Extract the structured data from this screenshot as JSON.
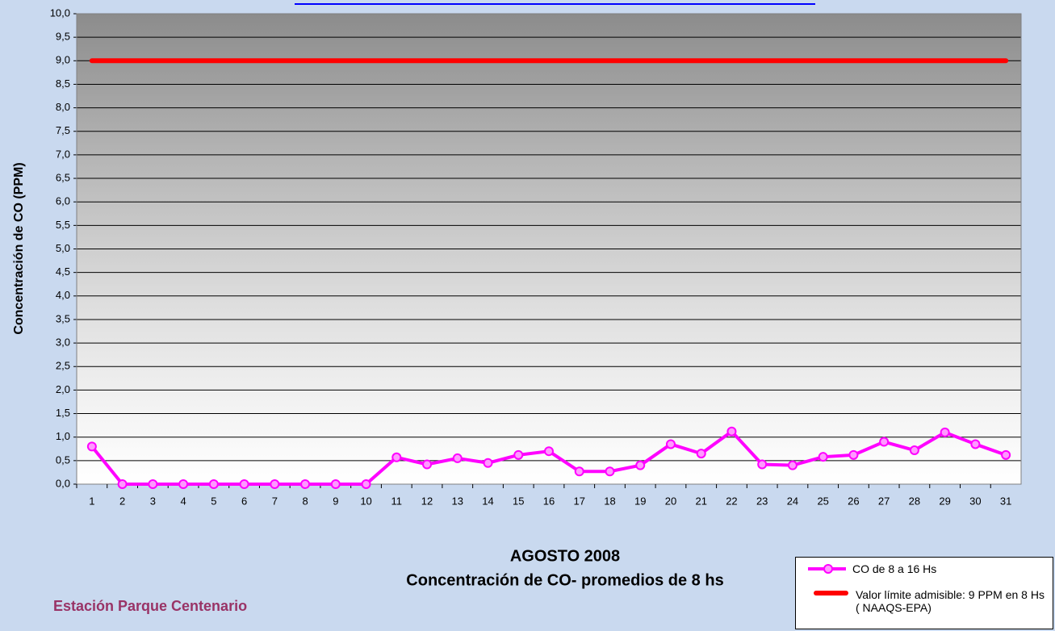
{
  "chart_data": {
    "type": "line",
    "title": "AGOSTO 2008",
    "subtitle": "Concentración de CO- promedios de 8 hs",
    "annotation": "Estación Parque Centenario",
    "y_label": "Concentración de CO (PPM)",
    "categories": [
      "1",
      "2",
      "3",
      "4",
      "5",
      "6",
      "7",
      "8",
      "9",
      "10",
      "11",
      "12",
      "13",
      "14",
      "15",
      "16",
      "17",
      "18",
      "19",
      "20",
      "21",
      "22",
      "23",
      "24",
      "25",
      "26",
      "27",
      "28",
      "29",
      "30",
      "31"
    ],
    "series": [
      {
        "name": "CO de 8 a 16 Hs",
        "color": "#ff00ff",
        "marker": true,
        "values": [
          0.8,
          0,
          0,
          0,
          0,
          0,
          0,
          0,
          0,
          0,
          0.57,
          0.42,
          0.55,
          0.45,
          0.62,
          0.7,
          0.27,
          0.27,
          0.4,
          0.85,
          0.65,
          1.12,
          0.42,
          0.4,
          0.58,
          0.62,
          0.9,
          0.72,
          1.1,
          0.85,
          0.62
        ]
      },
      {
        "name": "Valor límite admisible: 9 PPM en 8 Hs ( NAAQS-EPA)",
        "color": "#ff0000",
        "marker": false,
        "values": [
          9,
          9,
          9,
          9,
          9,
          9,
          9,
          9,
          9,
          9,
          9,
          9,
          9,
          9,
          9,
          9,
          9,
          9,
          9,
          9,
          9,
          9,
          9,
          9,
          9,
          9,
          9,
          9,
          9,
          9,
          9
        ]
      }
    ],
    "ylim": [
      0,
      10
    ],
    "yticks": [
      {
        "value": 0,
        "label": "0,0"
      },
      {
        "value": 0.5,
        "label": "0,5"
      },
      {
        "value": 1,
        "label": "1,0"
      },
      {
        "value": 1.5,
        "label": "1,5"
      },
      {
        "value": 2,
        "label": "2,0"
      },
      {
        "value": 2.5,
        "label": "2,5"
      },
      {
        "value": 3,
        "label": "3,0"
      },
      {
        "value": 3.5,
        "label": "3,5"
      },
      {
        "value": 4,
        "label": "4,0"
      },
      {
        "value": 4.5,
        "label": "4,5"
      },
      {
        "value": 5,
        "label": "5,0"
      },
      {
        "value": 5.5,
        "label": "5,5"
      },
      {
        "value": 6,
        "label": "6,0"
      },
      {
        "value": 6.5,
        "label": "6,5"
      },
      {
        "value": 7,
        "label": "7,0"
      },
      {
        "value": 7.5,
        "label": "7,5"
      },
      {
        "value": 8,
        "label": "8,0"
      },
      {
        "value": 8.5,
        "label": "8,5"
      },
      {
        "value": 9,
        "label": "9,0"
      },
      {
        "value": 9.5,
        "label": "9,5"
      },
      {
        "value": 10,
        "label": "10,0"
      }
    ],
    "grid": true
  }
}
